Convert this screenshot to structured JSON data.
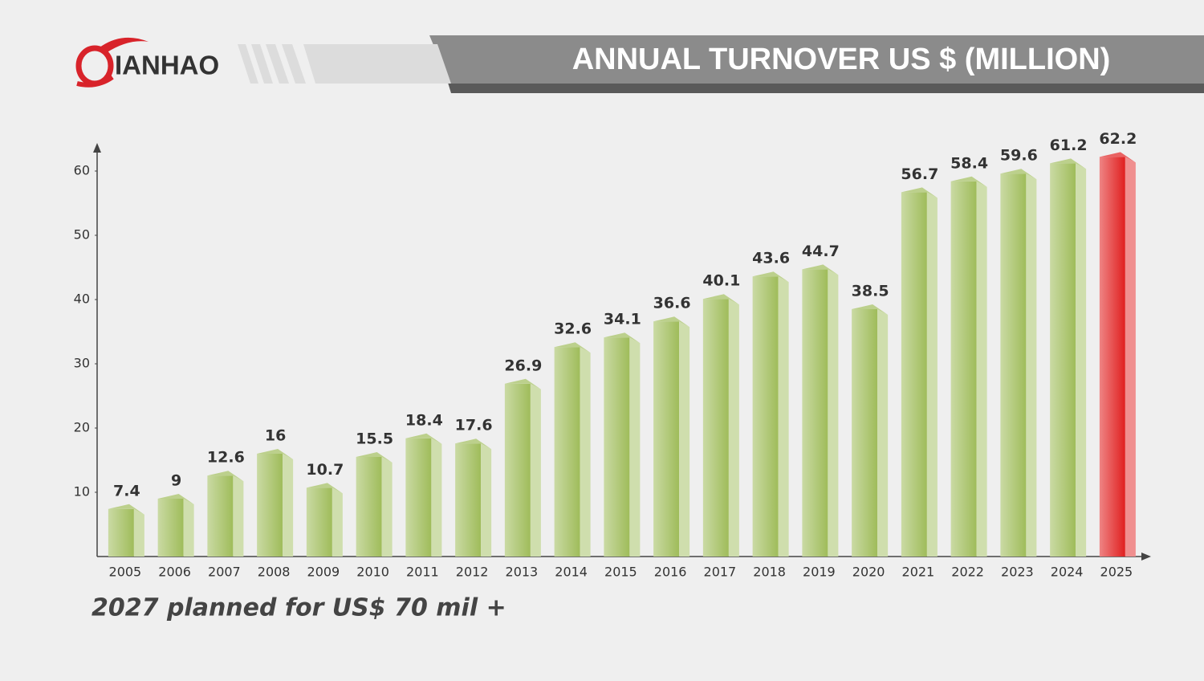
{
  "chart_data": {
    "type": "bar",
    "logo": "IANHAO",
    "title": "ANNUAL TURNOVER US $ (MILLION)",
    "annotation": "2027 planned for US$ 70 mil +",
    "categories": [
      "2005",
      "2006",
      "2007",
      "2008",
      "2009",
      "2010",
      "2011",
      "2012",
      "2013",
      "2014",
      "2015",
      "2016",
      "2017",
      "2018",
      "2019",
      "2020",
      "2021",
      "2022",
      "2023",
      "2024",
      "2025"
    ],
    "values": [
      7.4,
      9,
      12.6,
      16,
      10.7,
      15.5,
      18.4,
      17.6,
      26.9,
      32.6,
      34.1,
      36.6,
      40.1,
      43.6,
      44.7,
      38.5,
      56.7,
      58.4,
      59.6,
      61.2,
      62.2
    ],
    "colors": [
      "#9fbc5a",
      "#9fbc5a",
      "#9fbc5a",
      "#9fbc5a",
      "#9fbc5a",
      "#9fbc5a",
      "#9fbc5a",
      "#9fbc5a",
      "#9fbc5a",
      "#9fbc5a",
      "#9fbc5a",
      "#9fbc5a",
      "#9fbc5a",
      "#9fbc5a",
      "#9fbc5a",
      "#9fbc5a",
      "#9fbc5a",
      "#9fbc5a",
      "#9fbc5a",
      "#9fbc5a",
      "#e01f1f"
    ],
    "ylim": [
      0,
      64
    ],
    "yticks": [
      10,
      20,
      30,
      40,
      50,
      60
    ],
    "grid": false
  }
}
